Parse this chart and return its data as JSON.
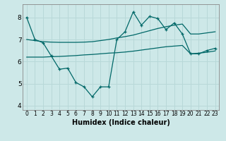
{
  "bg_color": "#cde8e8",
  "grid_color": "#b8d8d8",
  "line_color": "#006868",
  "xlabel": "Humidex (Indice chaleur)",
  "xlim": [
    -0.5,
    23.5
  ],
  "ylim": [
    3.8,
    8.6
  ],
  "xticks": [
    0,
    1,
    2,
    3,
    4,
    5,
    6,
    7,
    8,
    9,
    10,
    11,
    12,
    13,
    14,
    15,
    16,
    17,
    18,
    19,
    20,
    21,
    22,
    23
  ],
  "yticks": [
    4,
    5,
    6,
    7,
    8
  ],
  "main_x": [
    0,
    1,
    2,
    3,
    4,
    5,
    6,
    7,
    8,
    9,
    10,
    11,
    12,
    13,
    14,
    15,
    16,
    17,
    18,
    19,
    20,
    21,
    22,
    23
  ],
  "main_y": [
    8.0,
    7.0,
    6.85,
    6.25,
    5.65,
    5.7,
    5.05,
    4.85,
    4.4,
    4.85,
    4.85,
    7.0,
    7.35,
    8.25,
    7.65,
    8.05,
    7.95,
    7.45,
    7.75,
    7.25,
    6.35,
    6.35,
    6.5,
    6.6
  ],
  "upper_x": [
    0,
    1,
    2,
    3,
    4,
    5,
    6,
    7,
    8,
    9,
    10,
    11,
    12,
    13,
    14,
    15,
    16,
    17,
    18,
    19,
    20,
    21,
    22,
    23
  ],
  "upper_y": [
    7.0,
    6.95,
    6.9,
    6.88,
    6.87,
    6.87,
    6.87,
    6.88,
    6.9,
    6.95,
    7.0,
    7.07,
    7.13,
    7.2,
    7.3,
    7.4,
    7.5,
    7.58,
    7.65,
    7.7,
    7.25,
    7.25,
    7.3,
    7.35
  ],
  "lower_x": [
    0,
    1,
    2,
    3,
    4,
    5,
    6,
    7,
    8,
    9,
    10,
    11,
    12,
    13,
    14,
    15,
    16,
    17,
    18,
    19,
    20,
    21,
    22,
    23
  ],
  "lower_y": [
    6.2,
    6.2,
    6.2,
    6.22,
    6.23,
    6.25,
    6.27,
    6.3,
    6.32,
    6.35,
    6.38,
    6.4,
    6.43,
    6.47,
    6.52,
    6.57,
    6.62,
    6.67,
    6.7,
    6.73,
    6.35,
    6.38,
    6.42,
    6.48
  ]
}
